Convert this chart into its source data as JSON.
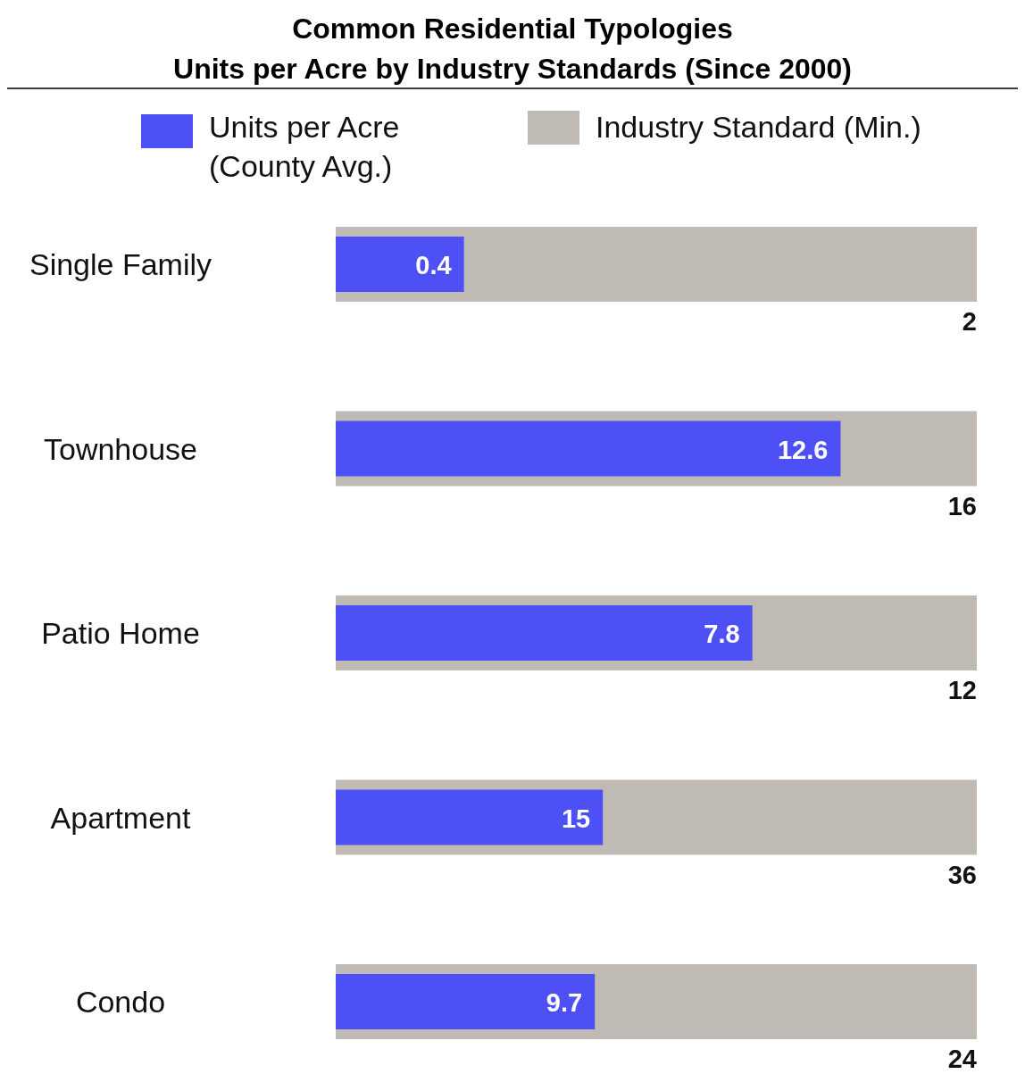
{
  "chart_data": [
    {
      "type": "bar",
      "orientation": "horizontal",
      "title": "Common Residential Typologies",
      "subtitle": "Units per Acre by Industry Standards (Since 2000)",
      "legend": "top",
      "categories": [
        "Single Family"
      ],
      "xlim": [
        0,
        2
      ],
      "tick_labels": "y",
      "data_labels": true,
      "series": [
        {
          "name": "Industry Standard (Min.)",
          "color": "#bfbab4",
          "values": [
            2
          ]
        },
        {
          "name": "Units per Acre (County Avg.)",
          "color": "#4d50f5",
          "values": [
            0.4
          ]
        }
      ]
    },
    {
      "type": "bar",
      "orientation": "horizontal",
      "categories": [
        "Townhouse"
      ],
      "xlim": [
        0,
        16
      ],
      "tick_labels": "y",
      "data_labels": true,
      "series": [
        {
          "color": "#bfbab4",
          "values": [
            16
          ]
        },
        {
          "color": "#4d50f5",
          "values": [
            12.6
          ]
        }
      ]
    },
    {
      "type": "bar",
      "orientation": "horizontal",
      "categories": [
        "Patio Home"
      ],
      "xlim": [
        0,
        12
      ],
      "tick_labels": "y",
      "data_labels": true,
      "series": [
        {
          "color": "#bfbab4",
          "values": [
            12
          ]
        },
        {
          "color": "#4d50f5",
          "values": [
            7.8
          ]
        }
      ]
    },
    {
      "type": "bar",
      "orientation": "horizontal",
      "categories": [
        "Apartment"
      ],
      "xlim": [
        0,
        36
      ],
      "tick_labels": "y",
      "data_labels": true,
      "series": [
        {
          "color": "#bfbab4",
          "values": [
            36
          ]
        },
        {
          "color": "#4d50f5",
          "values": [
            15
          ]
        }
      ]
    },
    {
      "type": "bar",
      "orientation": "horizontal",
      "categories": [
        "Condo"
      ],
      "xlim": [
        0,
        24
      ],
      "tick_labels": "y",
      "data_labels": true,
      "series": [
        {
          "color": "#bfbab4",
          "values": [
            24
          ]
        },
        {
          "color": "#4d50f5",
          "values": [
            9.7
          ]
        }
      ]
    }
  ]
}
